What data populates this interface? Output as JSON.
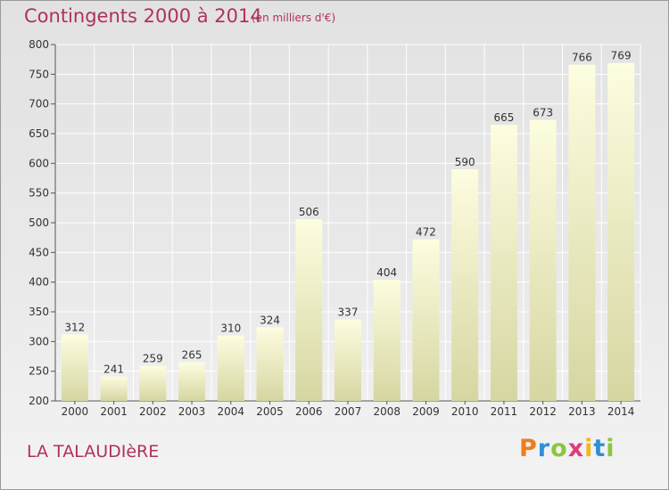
{
  "header": {
    "title": "Contingents 2000 à 2014",
    "subtitle": "(en milliers d'€)"
  },
  "footer": {
    "place": "LA TALAUDIèRE",
    "logo_letters": [
      "P",
      "r",
      "o",
      "x",
      "i",
      "t",
      "i"
    ],
    "logo_colors": [
      "#f07d1c",
      "#2f8fd8",
      "#8bc63f",
      "#e03a7d",
      "#f3b51c",
      "#2f8fd8",
      "#8bc63f"
    ]
  },
  "colors": {
    "title": "#b03060",
    "bar_top": "#fdfde0",
    "bar_bottom": "#d6d6a2"
  },
  "chart_data": {
    "type": "bar",
    "title": "Contingents 2000 à 2014",
    "subtitle": "(en milliers d'€)",
    "categories": [
      "2000",
      "2001",
      "2002",
      "2003",
      "2004",
      "2005",
      "2006",
      "2007",
      "2008",
      "2009",
      "2010",
      "2011",
      "2012",
      "2013",
      "2014"
    ],
    "values": [
      312,
      241,
      259,
      265,
      310,
      324,
      506,
      337,
      404,
      472,
      590,
      665,
      673,
      766,
      769
    ],
    "ylim": [
      200,
      800
    ],
    "yticks": [
      200,
      250,
      300,
      350,
      400,
      450,
      500,
      550,
      600,
      650,
      700,
      750,
      800
    ],
    "grid": true,
    "xlabel": "",
    "ylabel": ""
  }
}
